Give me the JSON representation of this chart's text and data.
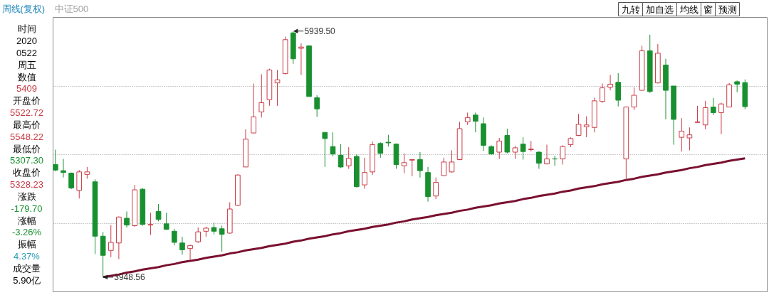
{
  "chart_data": [
    {
      "type": "candlestick",
      "title": "周线(复权)",
      "subtitle": "中证500",
      "categories": [
        null,
        null,
        null,
        null,
        null,
        null,
        null,
        null,
        null,
        null,
        null,
        null,
        null,
        null,
        null,
        null,
        null,
        null,
        null,
        null,
        null,
        null,
        null,
        null,
        null,
        null,
        null,
        null,
        null,
        null,
        null,
        null,
        null,
        null,
        null,
        null,
        null,
        null,
        null,
        null,
        null,
        null,
        null,
        null,
        null,
        null,
        null,
        null,
        null,
        null,
        null,
        null,
        null,
        null,
        null,
        null,
        null,
        null,
        null,
        null,
        null,
        null,
        null,
        null,
        null,
        null,
        null,
        null,
        null,
        null,
        null,
        null,
        null,
        null,
        null,
        null,
        null,
        null,
        null,
        null,
        null,
        null,
        null,
        null,
        null,
        null,
        null,
        null
      ],
      "ohlc": [
        [
          4860,
          4980,
          4805,
          4815
        ],
        [
          4810,
          4905,
          4755,
          4795
        ],
        [
          4790,
          4795,
          4660,
          4670
        ],
        [
          4650,
          4815,
          4585,
          4800
        ],
        [
          4780,
          4840,
          4745,
          4800
        ],
        [
          4720,
          4740,
          4135,
          4280
        ],
        [
          4280,
          4315,
          3948.56,
          4125
        ],
        [
          4165,
          4370,
          4110,
          4230
        ],
        [
          4225,
          4440,
          4095,
          4435
        ],
        [
          4425,
          4480,
          4350,
          4370
        ],
        [
          4365,
          4695,
          4355,
          4655
        ],
        [
          4660,
          4670,
          4365,
          4375
        ],
        [
          4370,
          4470,
          4290,
          4375
        ],
        [
          4480,
          4540,
          4400,
          4415
        ],
        [
          4380,
          4470,
          4330,
          4335
        ],
        [
          4320,
          4340,
          4205,
          4230
        ],
        [
          4225,
          4275,
          4130,
          4170
        ],
        [
          4180,
          4210,
          4090,
          4205
        ],
        [
          4235,
          4350,
          4225,
          4315
        ],
        [
          4320,
          4355,
          4275,
          4345
        ],
        [
          4350,
          4390,
          4295,
          4320
        ],
        [
          4340,
          4365,
          4155,
          4295
        ],
        [
          4305,
          4555,
          4300,
          4500
        ],
        [
          4530,
          4780,
          4525,
          4775
        ],
        [
          4840,
          5145,
          4840,
          5065
        ],
        [
          5115,
          5515,
          5115,
          5245
        ],
        [
          5285,
          5590,
          5240,
          5360
        ],
        [
          5385,
          5635,
          5335,
          5625
        ],
        [
          5520,
          5625,
          5335,
          5545
        ],
        [
          5595,
          5895,
          5590,
          5870
        ],
        [
          5925,
          5939.5,
          5675,
          5715
        ],
        [
          5800,
          5840,
          5585,
          5810
        ],
        [
          5820,
          5825,
          5410,
          5410
        ],
        [
          5400,
          5420,
          5245,
          5310
        ],
        [
          5120,
          5120,
          4840,
          5070
        ],
        [
          5005,
          5120,
          4925,
          4945
        ],
        [
          4935,
          5025,
          4830,
          4840
        ],
        [
          4850,
          5000,
          4825,
          4910
        ],
        [
          4925,
          4940,
          4675,
          4680
        ],
        [
          4695,
          4915,
          4665,
          4795
        ],
        [
          4800,
          5045,
          4775,
          5020
        ],
        [
          5030,
          5040,
          4915,
          4950
        ],
        [
          5040,
          5100,
          5005,
          5035
        ],
        [
          5025,
          5030,
          4825,
          4860
        ],
        [
          4850,
          4950,
          4790,
          4875
        ],
        [
          4895,
          4900,
          4765,
          4900
        ],
        [
          4900,
          4960,
          4755,
          4810
        ],
        [
          4795,
          4840,
          4560,
          4600
        ],
        [
          4605,
          4755,
          4580,
          4715
        ],
        [
          4770,
          4915,
          4765,
          4880
        ],
        [
          4800,
          4975,
          4795,
          4880
        ],
        [
          4900,
          5205,
          4895,
          5150
        ],
        [
          5205,
          5280,
          5180,
          5240
        ],
        [
          5260,
          5280,
          5120,
          5210
        ],
        [
          5190,
          5240,
          4970,
          5015
        ],
        [
          5005,
          5015,
          4940,
          4945
        ],
        [
          4960,
          5075,
          4905,
          5050
        ],
        [
          5095,
          5150,
          4950,
          4960
        ],
        [
          4960,
          5010,
          4905,
          4995
        ],
        [
          5025,
          5080,
          4900,
          4965
        ],
        [
          4980,
          5050,
          4965,
          4985
        ],
        [
          4960,
          4965,
          4825,
          4870
        ],
        [
          4865,
          5020,
          4860,
          4905
        ],
        [
          4905,
          4930,
          4850,
          4905
        ],
        [
          4905,
          5015,
          4860,
          5005
        ],
        [
          5020,
          5080,
          5000,
          5070
        ],
        [
          5095,
          5270,
          5090,
          5185
        ],
        [
          5165,
          5250,
          5080,
          5180
        ],
        [
          5160,
          5400,
          5120,
          5375
        ],
        [
          5370,
          5515,
          5360,
          5480
        ],
        [
          5485,
          5585,
          5460,
          5510
        ],
        [
          5525,
          5600,
          5330,
          5380
        ],
        [
          4905,
          5330,
          4735,
          5325
        ],
        [
          5325,
          5485,
          5300,
          5420
        ],
        [
          5460,
          5820,
          5460,
          5780
        ],
        [
          5780,
          5910,
          5440,
          5450
        ],
        [
          5520,
          5835,
          5515,
          5760
        ],
        [
          5665,
          5715,
          5225,
          5460
        ],
        [
          5495,
          5495,
          5020,
          5225
        ],
        [
          5080,
          5235,
          4965,
          5130
        ],
        [
          5075,
          5160,
          4975,
          5100
        ],
        [
          5200,
          5335,
          5200,
          5205
        ],
        [
          5180,
          5375,
          5145,
          5320
        ],
        [
          5325,
          5400,
          5260,
          5280
        ],
        [
          5280,
          5360,
          5105,
          5350
        ],
        [
          5325,
          5520,
          5325,
          5505
        ],
        [
          5530,
          5540,
          5445,
          5510
        ],
        [
          5522.72,
          5548.22,
          5307.3,
          5328.23
        ]
      ],
      "colors": [
        "#199030",
        "#199030",
        "#199030",
        "#c93a45",
        "#c93a45",
        "#199030",
        "#199030",
        "#c93a45",
        "#c93a45",
        "#199030",
        "#c93a45",
        "#199030",
        "#c93a45",
        "#199030",
        "#199030",
        "#199030",
        "#199030",
        "#c93a45",
        "#c93a45",
        "#c93a45",
        "#199030",
        "#199030",
        "#c93a45",
        "#c93a45",
        "#c93a45",
        "#c93a45",
        "#c93a45",
        "#c93a45",
        "#c93a45",
        "#c93a45",
        "#199030",
        "#c93a45",
        "#199030",
        "#199030",
        "#199030",
        "#199030",
        "#199030",
        "#c93a45",
        "#199030",
        "#c93a45",
        "#c93a45",
        "#199030",
        "#199030",
        "#199030",
        "#c93a45",
        "#c93a45",
        "#199030",
        "#199030",
        "#c93a45",
        "#c93a45",
        "#c93a45",
        "#c93a45",
        "#c93a45",
        "#199030",
        "#199030",
        "#199030",
        "#c93a45",
        "#199030",
        "#c93a45",
        "#199030",
        "#c93a45",
        "#199030",
        "#c93a45",
        "#199030",
        "#c93a45",
        "#c93a45",
        "#c93a45",
        "#c93a45",
        "#c93a45",
        "#c93a45",
        "#c93a45",
        "#199030",
        "#c93a45",
        "#c93a45",
        "#c93a45",
        "#199030",
        "#c93a45",
        "#199030",
        "#199030",
        "#c93a45",
        "#c93a45",
        "#c93a45",
        "#c93a45",
        "#199030",
        "#c93a45",
        "#c93a45",
        "#199030",
        "#199030"
      ],
      "series": [
        {
          "type": "line",
          "color": "#7a1030",
          "values": [
            null,
            null,
            null,
            null,
            null,
            null,
            3950,
            3960,
            3970,
            3985,
            3995,
            4010,
            4020,
            4030,
            4045,
            4055,
            4070,
            4080,
            4090,
            4105,
            4115,
            4125,
            4140,
            4150,
            4165,
            4175,
            4185,
            4200,
            4210,
            4220,
            4235,
            4245,
            4260,
            4270,
            4280,
            4295,
            4305,
            4320,
            4330,
            4340,
            4355,
            4365,
            4375,
            4390,
            4400,
            4415,
            4425,
            4435,
            4450,
            4460,
            4470,
            4485,
            4495,
            4510,
            4520,
            4530,
            4545,
            4555,
            4565,
            4580,
            4590,
            4605,
            4615,
            4625,
            4640,
            4650,
            4665,
            4675,
            4685,
            4700,
            4710,
            4720,
            4735,
            4745,
            4760,
            4770,
            4780,
            4795,
            4805,
            4815,
            4830,
            4840,
            4855,
            4865,
            4875,
            4890,
            4900,
            4910
          ]
        }
      ],
      "ylim": [
        3830,
        6050
      ],
      "yticks": [
        {
          "value": 4385,
          "label": null
        },
        {
          "value": 4940,
          "label": null
        },
        {
          "value": 5495,
          "label": null
        }
      ],
      "grid": "y",
      "tick_labels": false,
      "annotations": [
        "5939.50",
        "3948.56"
      ]
    },
    {
      "type": "other",
      "annotations": [
        "时间",
        "2020",
        "0522",
        "周五",
        "数值",
        "5409",
        "开盘价",
        "5522.72",
        "最高价",
        "5548.22",
        "最低价",
        "5307.30",
        "收盘价",
        "5328.23",
        "涨跌",
        "-179.70",
        "涨幅",
        "-3.26%",
        "振幅",
        "4.37%",
        "成交量",
        "5.90亿"
      ],
      "colors": [
        "#000000",
        "#000000",
        "#000000",
        "#000000",
        "#000000",
        "#c93a45",
        "#000000",
        "#c93a45",
        "#000000",
        "#c93a45",
        "#000000",
        "#199030",
        "#000000",
        "#c93a45",
        "#000000",
        "#199030",
        "#000000",
        "#199030",
        "#000000",
        "#2b9bb3",
        "#000000",
        "#000000"
      ]
    },
    {
      "type": "other",
      "annotations": [
        "九转",
        "加自选",
        "均线",
        "窗",
        "预测"
      ]
    }
  ]
}
